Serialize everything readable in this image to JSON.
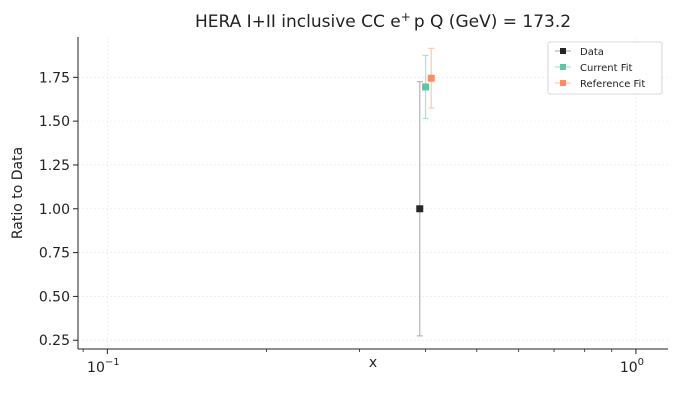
{
  "chart_data": {
    "type": "scatter",
    "title_main": "HERA I+II inclusive CC e",
    "title_sup": "+",
    "title_rest": "p Q (GeV) = 173.2",
    "xlabel": "x",
    "ylabel": "Ratio to Data",
    "xscale": "log",
    "xlim": [
      0.088,
      1.15
    ],
    "ylim": [
      0.2,
      1.98
    ],
    "xticks": [
      {
        "value": 0.1,
        "base": "10",
        "exp": "−1"
      },
      {
        "value": 1.0,
        "base": "10",
        "exp": "0"
      }
    ],
    "yticks": [
      {
        "value": 0.25,
        "label": "0.25"
      },
      {
        "value": 0.5,
        "label": "0.50"
      },
      {
        "value": 0.75,
        "label": "0.75"
      },
      {
        "value": 1.0,
        "label": "1.00"
      },
      {
        "value": 1.25,
        "label": "1.25"
      },
      {
        "value": 1.5,
        "label": "1.50"
      },
      {
        "value": 1.75,
        "label": "1.75"
      }
    ],
    "grid": true,
    "legend_position": "top-right",
    "series": [
      {
        "name": "Data",
        "color": "#262626",
        "errcolor": "#bbbbbb",
        "points": [
          {
            "x": 0.39,
            "y": 1.0,
            "err": 0.725
          }
        ]
      },
      {
        "name": "Current Fit",
        "color": "#66c2a5",
        "errcolor": "#b3e2d0",
        "points": [
          {
            "x": 0.4,
            "y": 1.695,
            "err": 0.18
          }
        ]
      },
      {
        "name": "Reference Fit",
        "color": "#fc8d62",
        "errcolor": "#fdcdb4",
        "points": [
          {
            "x": 0.41,
            "y": 1.745,
            "err": 0.17
          }
        ]
      }
    ]
  }
}
